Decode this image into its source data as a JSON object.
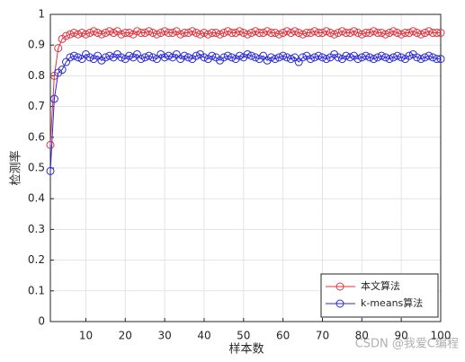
{
  "chart_data": {
    "type": "line",
    "xlabel": "样本数",
    "ylabel": "检测率",
    "x": [
      1,
      2,
      3,
      4,
      5,
      6,
      7,
      8,
      9,
      10,
      11,
      12,
      13,
      14,
      15,
      16,
      17,
      18,
      19,
      20,
      21,
      22,
      23,
      24,
      25,
      26,
      27,
      28,
      29,
      30,
      31,
      32,
      33,
      34,
      35,
      36,
      37,
      38,
      39,
      40,
      41,
      42,
      43,
      44,
      45,
      46,
      47,
      48,
      49,
      50,
      51,
      52,
      53,
      54,
      55,
      56,
      57,
      58,
      59,
      60,
      61,
      62,
      63,
      64,
      65,
      66,
      67,
      68,
      69,
      70,
      71,
      72,
      73,
      74,
      75,
      76,
      77,
      78,
      79,
      80,
      81,
      82,
      83,
      84,
      85,
      86,
      87,
      88,
      89,
      90,
      91,
      92,
      93,
      94,
      95,
      96,
      97,
      98,
      99,
      100
    ],
    "series": [
      {
        "name": "本文算法",
        "color": "#e0343f",
        "values": [
          0.575,
          0.8,
          0.89,
          0.92,
          0.93,
          0.935,
          0.94,
          0.935,
          0.94,
          0.935,
          0.94,
          0.945,
          0.94,
          0.935,
          0.94,
          0.945,
          0.94,
          0.945,
          0.935,
          0.94,
          0.94,
          0.935,
          0.945,
          0.94,
          0.94,
          0.945,
          0.94,
          0.935,
          0.94,
          0.945,
          0.94,
          0.94,
          0.945,
          0.935,
          0.94,
          0.94,
          0.945,
          0.94,
          0.935,
          0.94,
          0.935,
          0.94,
          0.94,
          0.935,
          0.94,
          0.945,
          0.94,
          0.94,
          0.945,
          0.94,
          0.935,
          0.94,
          0.945,
          0.94,
          0.94,
          0.945,
          0.94,
          0.94,
          0.935,
          0.94,
          0.945,
          0.94,
          0.945,
          0.94,
          0.935,
          0.94,
          0.94,
          0.945,
          0.94,
          0.94,
          0.945,
          0.94,
          0.935,
          0.94,
          0.945,
          0.94,
          0.94,
          0.945,
          0.94,
          0.935,
          0.94,
          0.94,
          0.945,
          0.94,
          0.94,
          0.935,
          0.94,
          0.945,
          0.94,
          0.935,
          0.94,
          0.94,
          0.945,
          0.94,
          0.935,
          0.94,
          0.945,
          0.94,
          0.94,
          0.94
        ]
      },
      {
        "name": "k-means算法",
        "color": "#2a2ad6",
        "values": [
          0.49,
          0.725,
          0.81,
          0.82,
          0.845,
          0.86,
          0.865,
          0.86,
          0.855,
          0.87,
          0.86,
          0.855,
          0.865,
          0.85,
          0.86,
          0.865,
          0.86,
          0.87,
          0.86,
          0.855,
          0.865,
          0.86,
          0.87,
          0.855,
          0.86,
          0.865,
          0.86,
          0.855,
          0.87,
          0.86,
          0.865,
          0.86,
          0.87,
          0.855,
          0.865,
          0.86,
          0.855,
          0.865,
          0.87,
          0.86,
          0.855,
          0.865,
          0.86,
          0.85,
          0.86,
          0.865,
          0.86,
          0.855,
          0.865,
          0.86,
          0.87,
          0.865,
          0.86,
          0.855,
          0.865,
          0.85,
          0.86,
          0.855,
          0.86,
          0.865,
          0.86,
          0.855,
          0.86,
          0.845,
          0.86,
          0.865,
          0.855,
          0.86,
          0.865,
          0.86,
          0.855,
          0.86,
          0.87,
          0.86,
          0.855,
          0.865,
          0.86,
          0.865,
          0.855,
          0.86,
          0.865,
          0.86,
          0.855,
          0.86,
          0.865,
          0.86,
          0.855,
          0.86,
          0.865,
          0.86,
          0.855,
          0.865,
          0.87,
          0.86,
          0.855,
          0.86,
          0.865,
          0.86,
          0.855,
          0.855
        ]
      }
    ],
    "xlim": [
      1,
      100
    ],
    "xticks": [
      10,
      20,
      30,
      40,
      50,
      60,
      70,
      80,
      90,
      100
    ],
    "ylim": [
      0,
      1
    ],
    "yticks": [
      0,
      0.1,
      0.2,
      0.3,
      0.4,
      0.5,
      0.6,
      0.7,
      0.8,
      0.9,
      1
    ],
    "grid": true,
    "legend": "lower right",
    "watermark": "CSDN @我爱C编程"
  }
}
